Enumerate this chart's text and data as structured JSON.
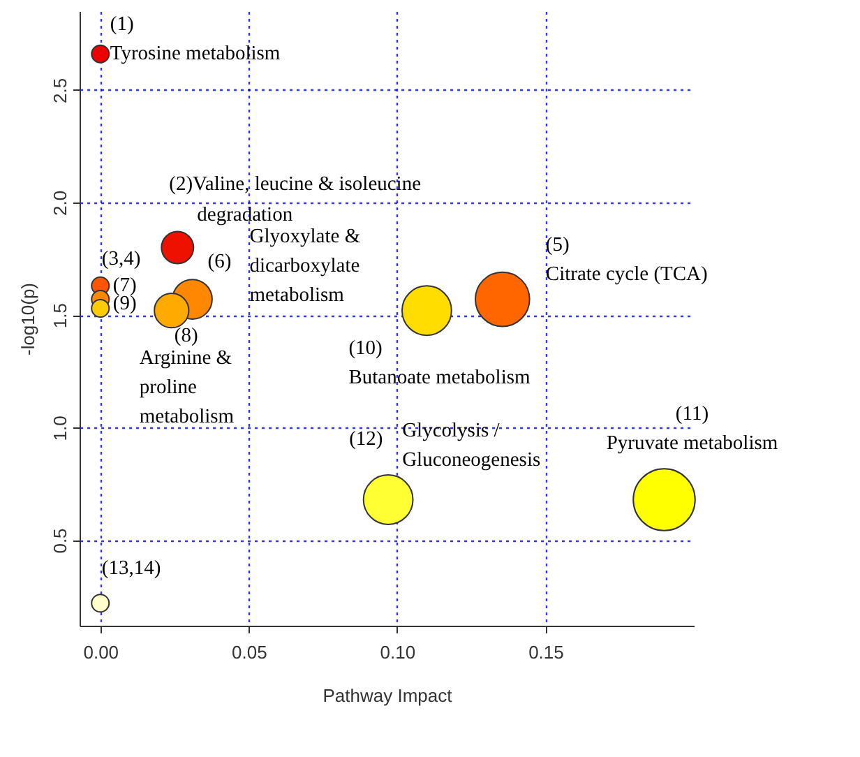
{
  "chart_data": {
    "type": "bubble",
    "xlabel": "Pathway Impact",
    "ylabel": "-log10(p)",
    "x": [
      0,
      0.026,
      0,
      0,
      0,
      0.031,
      0.024,
      0.11,
      0.1355,
      0.097,
      0.19,
      0
    ],
    "values": [
      2.66,
      1.8,
      1.63,
      1.57,
      1.53,
      1.57,
      1.52,
      1.52,
      1.57,
      0.68,
      0.68,
      0.22
    ],
    "sizes": [
      0.08,
      0.27,
      0.08,
      0.08,
      0.08,
      0.41,
      0.31,
      0.64,
      0.77,
      0.64,
      1,
      0.08
    ],
    "colors": [
      "#ee0000",
      "#ee1100",
      "#ff5500",
      "#ff8800",
      "#ffcc00",
      "#ff8800",
      "#ffaa00",
      "#ffdd00",
      "#ff6600",
      "#ffff33",
      "#ffff00",
      "#ffffcc"
    ],
    "xlim": [
      -0.007,
      0.2
    ],
    "ylim": [
      0.12,
      2.85
    ],
    "xticks": [
      {
        "value": 0,
        "label": "0.00"
      },
      {
        "value": 0.05,
        "label": "0.05"
      },
      {
        "value": 0.1,
        "label": "0.10"
      },
      {
        "value": 0.15,
        "label": "0.15"
      }
    ],
    "yticks": [
      0.5,
      {
        "value": 1,
        "label": "1.0"
      },
      1.5,
      {
        "value": 2,
        "label": "2.0"
      },
      2.5
    ],
    "grid": true,
    "annotations": [
      {
        "text": "(1)\nTyrosine metabolism",
        "x": 0,
        "y": 2.66
      },
      {
        "text": "(2)Valine, leucine & isoleucine",
        "x": 0.026,
        "y": 1.8
      },
      {
        "text": "degradation",
        "x": 0.026,
        "y": 1.8
      },
      {
        "text": "(3,4)",
        "x": 0,
        "y": 1.63
      },
      {
        "text": "(7)",
        "x": 0,
        "y": 1.57
      },
      {
        "text": "(9)",
        "x": 0,
        "y": 1.53
      },
      {
        "text": "(6)",
        "x": 0.031,
        "y": 1.57
      },
      {
        "text": "Glyoxylate &\ndicarboxylate\nmetabolism",
        "x": 0.031,
        "y": 1.57
      },
      {
        "text": "(8)",
        "x": 0.024,
        "y": 1.52
      },
      {
        "text": "Arginine &\nproline\nmetabolism",
        "x": 0.024,
        "y": 1.52
      },
      {
        "text": "(10)\nButanoate metabolism",
        "x": 0.11,
        "y": 1.52
      },
      {
        "text": "(5)\nCitrate cycle (TCA)",
        "x": 0.1355,
        "y": 1.57
      },
      {
        "text": "(11)\nPyruvate metabolism",
        "x": 0.19,
        "y": 0.68
      },
      {
        "text": "(12)",
        "x": 0.097,
        "y": 0.68
      },
      {
        "text": "Glycolysis /\nGluconeogenesis",
        "x": 0.097,
        "y": 0.68
      },
      {
        "text": "(13,14)",
        "x": 0,
        "y": 0.22
      }
    ]
  }
}
